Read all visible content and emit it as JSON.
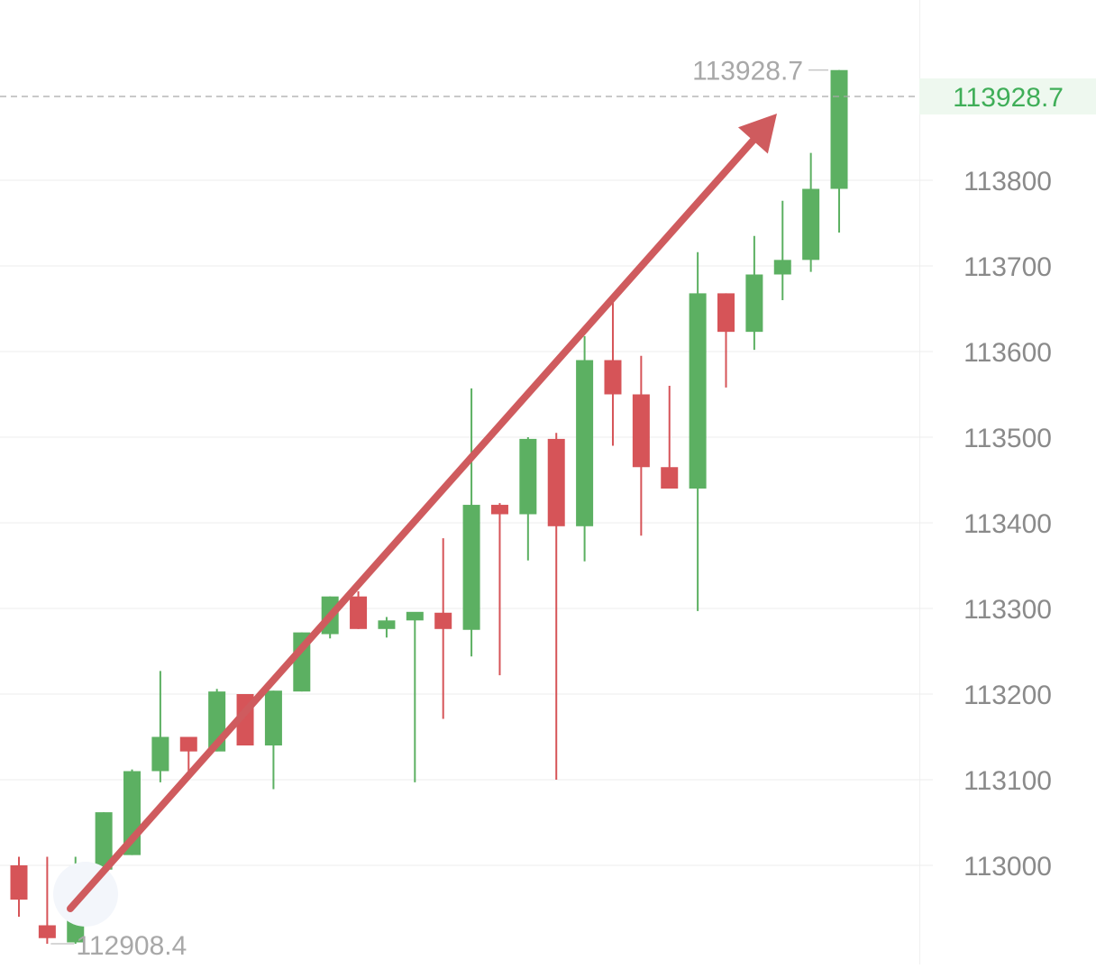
{
  "colors": {
    "up": "#5cb062",
    "down": "#d65458",
    "arrow": "#cf5b5e",
    "grid": "#ececec",
    "axis_label": "#8a8a8a",
    "annotation": "#a8a8a8",
    "price_label": "#3fae58",
    "price_label_bg": "#eef8ef",
    "price_line": "#a9a9a9"
  },
  "chart_data": {
    "type": "candlestick",
    "ylim": [
      112870,
      114040
    ],
    "y_ticks": [
      113000,
      113100,
      113200,
      113300,
      113400,
      113500,
      113600,
      113700,
      113800
    ],
    "y_tick_labels": [
      "113000",
      "113100",
      "113200",
      "113300",
      "113400",
      "113500",
      "113600",
      "113700",
      "113800"
    ],
    "grid": true,
    "current_price": 113928.7,
    "current_price_label": "113928.7",
    "high_label": "113928.7",
    "low_label": "112908.4",
    "trend_arrow": {
      "direction": "up",
      "from_price": 112950,
      "to_price": 113900
    },
    "candles": [
      {
        "o": 113000,
        "h": 113010,
        "l": 112940,
        "c": 112960
      },
      {
        "o": 112930,
        "h": 113010,
        "l": 112908.4,
        "c": 112915
      },
      {
        "o": 112910,
        "h": 113010,
        "l": 112908.4,
        "c": 112995
      },
      {
        "o": 112995,
        "h": 113062,
        "l": 112995,
        "c": 113062
      },
      {
        "o": 113012,
        "h": 113112,
        "l": 113012,
        "c": 113110
      },
      {
        "o": 113110,
        "h": 113227,
        "l": 113097,
        "c": 113150
      },
      {
        "o": 113150,
        "h": 113150,
        "l": 113100,
        "c": 113133
      },
      {
        "o": 113133,
        "h": 113206,
        "l": 113133,
        "c": 113203
      },
      {
        "o": 113200,
        "h": 113200,
        "l": 113140,
        "c": 113140
      },
      {
        "o": 113140,
        "h": 113204,
        "l": 113089,
        "c": 113204
      },
      {
        "o": 113203,
        "h": 113272,
        "l": 113203,
        "c": 113272
      },
      {
        "o": 113270,
        "h": 113314,
        "l": 113265,
        "c": 113314
      },
      {
        "o": 113314,
        "h": 113320,
        "l": 113276,
        "c": 113276
      },
      {
        "o": 113276,
        "h": 113290,
        "l": 113266,
        "c": 113286
      },
      {
        "o": 113286,
        "h": 113295,
        "l": 113097,
        "c": 113296
      },
      {
        "o": 113295,
        "h": 113382,
        "l": 113171,
        "c": 113276
      },
      {
        "o": 113275,
        "h": 113557,
        "l": 113244,
        "c": 113421
      },
      {
        "o": 113421,
        "h": 113423,
        "l": 113222,
        "c": 113410
      },
      {
        "o": 113410,
        "h": 113500,
        "l": 113356,
        "c": 113498
      },
      {
        "o": 113498,
        "h": 113505,
        "l": 113100,
        "c": 113396
      },
      {
        "o": 113396,
        "h": 113618,
        "l": 113355,
        "c": 113590
      },
      {
        "o": 113590,
        "h": 113667,
        "l": 113490,
        "c": 113550
      },
      {
        "o": 113550,
        "h": 113595,
        "l": 113385,
        "c": 113465
      },
      {
        "o": 113465,
        "h": 113560,
        "l": 113440,
        "c": 113440
      },
      {
        "o": 113440,
        "h": 113716,
        "l": 113297,
        "c": 113668
      },
      {
        "o": 113668,
        "h": 113668,
        "l": 113558,
        "c": 113623
      },
      {
        "o": 113623,
        "h": 113735,
        "l": 113602,
        "c": 113690
      },
      {
        "o": 113690,
        "h": 113776,
        "l": 113660,
        "c": 113707
      },
      {
        "o": 113707,
        "h": 113832,
        "l": 113693,
        "c": 113790
      },
      {
        "o": 113790,
        "h": 113928.7,
        "l": 113739,
        "c": 113928.7
      }
    ]
  }
}
